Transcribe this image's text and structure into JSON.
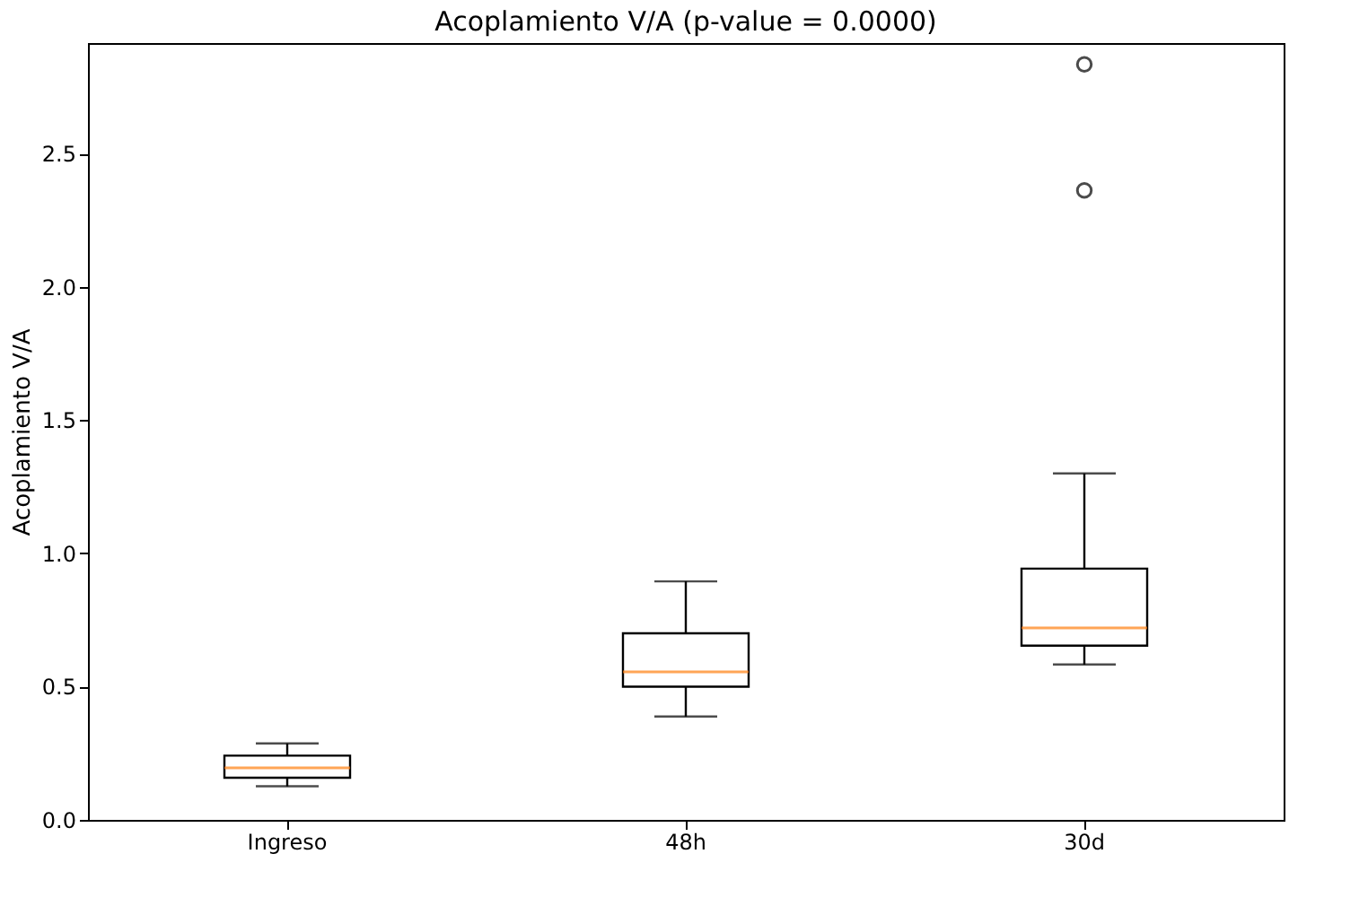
{
  "chart_data": {
    "type": "box",
    "title": "Acoplamiento V/A (p-value = 0.0000)",
    "ylabel": "Acoplamiento V/A",
    "categories": [
      "Ingreso",
      "48h",
      "30d"
    ],
    "boxes": [
      {
        "low": 0.126,
        "q1": 0.158,
        "median": 0.195,
        "q3": 0.241,
        "high": 0.287
      },
      {
        "low": 0.388,
        "q1": 0.5,
        "median": 0.555,
        "q3": 0.7,
        "high": 0.895
      },
      {
        "low": 0.583,
        "q1": 0.654,
        "median": 0.72,
        "q3": 0.943,
        "high": 1.3,
        "outliers": [
          2.362,
          2.835
        ]
      }
    ],
    "ylim": [
      0,
      2.915
    ],
    "yticks": [
      {
        "value": 0,
        "label": "0.0"
      },
      0.5,
      {
        "value": 1,
        "label": "1.0"
      },
      1.5,
      {
        "value": 2,
        "label": "2.0"
      },
      2.5
    ],
    "grid": false
  }
}
